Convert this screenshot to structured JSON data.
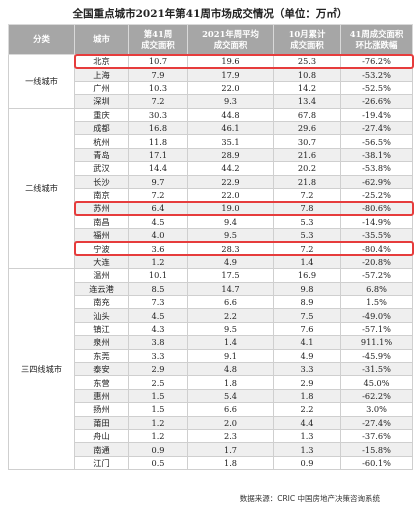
{
  "title": "全国重点城市2021年第41周市场成交情况（单位：万㎡）",
  "headers": [
    "分类",
    "城市",
    "第41周\n成交面积",
    "2021年周平均\n成交面积",
    "10月累计\n成交面积",
    "41周成交面积\n环比涨跌幅"
  ],
  "groups": [
    {
      "category": "一线城市",
      "rows": [
        [
          "北京",
          "10.7",
          "19.6",
          "25.3",
          "-76.2%"
        ],
        [
          "上海",
          "7.9",
          "17.9",
          "10.8",
          "-53.2%"
        ],
        [
          "广州",
          "10.3",
          "22.0",
          "14.2",
          "-52.5%"
        ],
        [
          "深圳",
          "7.2",
          "9.3",
          "13.4",
          "-26.6%"
        ]
      ]
    },
    {
      "category": "二线城市",
      "rows": [
        [
          "重庆",
          "30.3",
          "44.8",
          "67.8",
          "-19.4%"
        ],
        [
          "成都",
          "16.8",
          "46.1",
          "29.6",
          "-27.4%"
        ],
        [
          "杭州",
          "11.8",
          "35.1",
          "30.7",
          "-56.5%"
        ],
        [
          "青岛",
          "17.1",
          "28.9",
          "21.6",
          "-38.1%"
        ],
        [
          "武汉",
          "14.4",
          "44.2",
          "20.2",
          "-53.8%"
        ],
        [
          "长沙",
          "9.7",
          "22.9",
          "21.8",
          "-62.9%"
        ],
        [
          "南京",
          "7.2",
          "22.0",
          "7.2",
          "-25.2%"
        ],
        [
          "苏州",
          "6.4",
          "19.0",
          "7.8",
          "-80.6%"
        ],
        [
          "南昌",
          "4.5",
          "9.4",
          "5.3",
          "-14.9%"
        ],
        [
          "福州",
          "4.0",
          "9.5",
          "5.3",
          "-35.5%"
        ],
        [
          "宁波",
          "3.6",
          "28.3",
          "7.2",
          "-80.4%"
        ],
        [
          "大连",
          "1.2",
          "4.9",
          "1.4",
          "-20.8%"
        ]
      ]
    },
    {
      "category": "三四线城市",
      "rows": [
        [
          "温州",
          "10.1",
          "17.5",
          "16.9",
          "-57.2%"
        ],
        [
          "连云港",
          "8.5",
          "14.7",
          "9.8",
          "6.8%"
        ],
        [
          "南充",
          "7.3",
          "6.6",
          "8.9",
          "1.5%"
        ],
        [
          "汕头",
          "4.5",
          "2.2",
          "7.5",
          "-49.0%"
        ],
        [
          "镇江",
          "4.3",
          "9.5",
          "7.6",
          "-57.1%"
        ],
        [
          "泉州",
          "3.8",
          "1.4",
          "4.1",
          "911.1%"
        ],
        [
          "东莞",
          "3.3",
          "9.1",
          "4.9",
          "-45.9%"
        ],
        [
          "泰安",
          "2.9",
          "4.8",
          "3.3",
          "-31.5%"
        ],
        [
          "东营",
          "2.5",
          "1.8",
          "2.9",
          "45.0%"
        ],
        [
          "惠州",
          "1.5",
          "5.4",
          "1.8",
          "-62.2%"
        ],
        [
          "扬州",
          "1.5",
          "6.6",
          "2.2",
          "3.0%"
        ],
        [
          "莆田",
          "1.2",
          "2.0",
          "4.4",
          "-27.4%"
        ],
        [
          "舟山",
          "1.2",
          "2.3",
          "1.3",
          "-37.6%"
        ],
        [
          "南通",
          "0.9",
          "1.7",
          "1.3",
          "-15.8%"
        ],
        [
          "江门",
          "0.5",
          "1.8",
          "0.9",
          "-60.1%"
        ]
      ]
    }
  ],
  "highlighted_cities": [
    "北京",
    "苏州",
    "宁波"
  ],
  "highlight_color": "#e63c3c",
  "source": "数据来源：CRIC 中国房地产决策咨询系统"
}
